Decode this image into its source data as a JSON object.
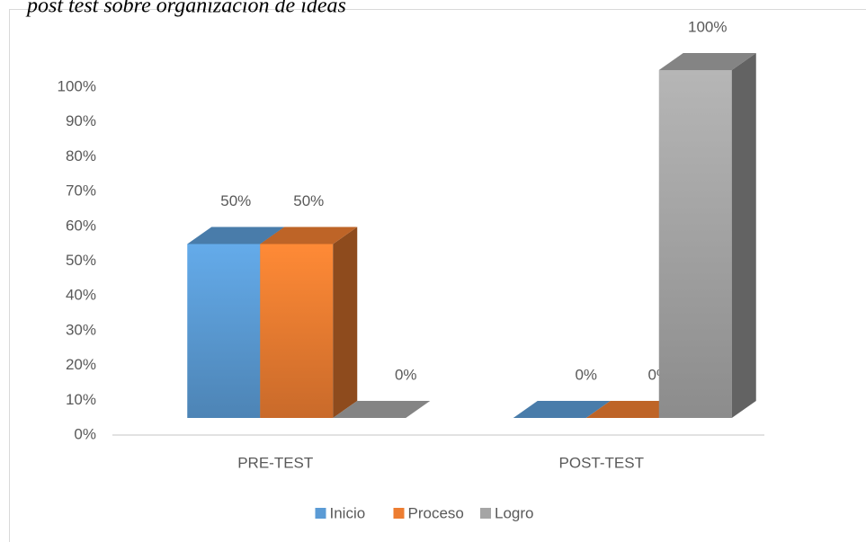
{
  "caption": "post test sobre organización de ideas",
  "chart_data": {
    "type": "bar3d",
    "categories": [
      "PRE-TEST",
      "POST-TEST"
    ],
    "series": [
      {
        "name": "Inicio",
        "color": "#5b9bd5",
        "values": [
          50,
          0
        ],
        "value_labels": [
          "50%",
          "0%"
        ]
      },
      {
        "name": "Proceso",
        "color": "#ed7d31",
        "values": [
          50,
          0
        ],
        "value_labels": [
          "50%",
          "0%"
        ]
      },
      {
        "name": "Logro",
        "color": "#a5a5a5",
        "values": [
          0,
          100
        ],
        "value_labels": [
          "0%",
          "100%"
        ]
      }
    ],
    "ylim": [
      0,
      100
    ],
    "yticks": [
      {
        "value": 0,
        "label": "0%"
      },
      {
        "value": 10,
        "label": "10%"
      },
      {
        "value": 20,
        "label": "20%"
      },
      {
        "value": 30,
        "label": "30%"
      },
      {
        "value": 40,
        "label": "40%"
      },
      {
        "value": 50,
        "label": "50%"
      },
      {
        "value": 60,
        "label": "60%"
      },
      {
        "value": 70,
        "label": "70%"
      },
      {
        "value": 80,
        "label": "80%"
      },
      {
        "value": 90,
        "label": "90%"
      },
      {
        "value": 100,
        "label": "100%"
      }
    ],
    "legend": "bottom"
  }
}
